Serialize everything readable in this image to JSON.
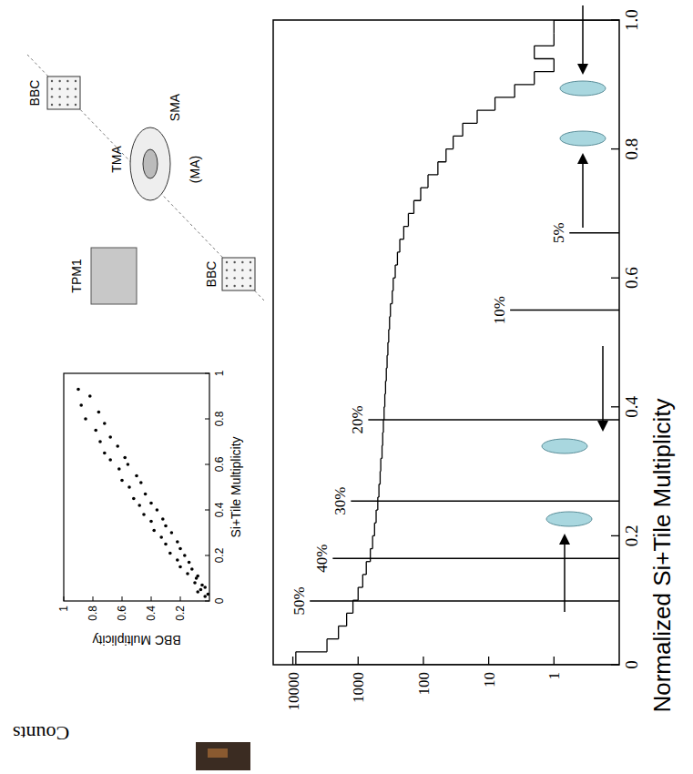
{
  "chart_data": [
    {
      "type": "histogram",
      "x_label": "Normalized Si+Tile Multiplicity",
      "y_label": "Counts",
      "bins": [
        0,
        0.02,
        0.04,
        0.06,
        0.08,
        0.1,
        0.12,
        0.14,
        0.16,
        0.18,
        0.2,
        0.22,
        0.24,
        0.26,
        0.28,
        0.3,
        0.32,
        0.34,
        0.36,
        0.38,
        0.4,
        0.42,
        0.44,
        0.46,
        0.48,
        0.5,
        0.52,
        0.54,
        0.56,
        0.58,
        0.6,
        0.62,
        0.64,
        0.66,
        0.68,
        0.7,
        0.72,
        0.74,
        0.76,
        0.78,
        0.8,
        0.82,
        0.84,
        0.86,
        0.88,
        0.9,
        0.92,
        0.94,
        0.96,
        0.98,
        1
      ],
      "values": [
        9000,
        3000,
        2000,
        1500,
        1200,
        1000,
        850,
        750,
        650,
        600,
        560,
        530,
        500,
        480,
        460,
        450,
        430,
        420,
        410,
        400,
        390,
        380,
        370,
        360,
        350,
        340,
        330,
        320,
        300,
        290,
        270,
        250,
        230,
        200,
        170,
        140,
        110,
        85,
        60,
        45,
        35,
        25,
        15,
        8,
        4,
        2,
        1,
        2,
        1,
        1
      ],
      "color": "#000000",
      "log": "y",
      "xlim": [
        0,
        1
      ],
      "ylim": [
        0.1,
        20000
      ],
      "xticks": [
        0,
        0.2,
        0.4,
        0.6,
        0.8,
        {
          "value": 1,
          "label": "1.0"
        }
      ],
      "yticks": [
        1,
        10,
        100,
        1000,
        10000
      ],
      "annotations": [
        {
          "label": "50%",
          "x": 0.099,
          "y": 5500
        },
        {
          "label": "40%",
          "x": 0.165,
          "y": 2450
        },
        {
          "label": "30%",
          "x": 0.254,
          "y": 1290
        },
        {
          "label": "20%",
          "x": 0.38,
          "y": 700
        },
        {
          "label": "10%",
          "x": 0.55,
          "y": 4.7
        },
        {
          "label": "5%",
          "x": 0.67,
          "y": 0.58
        }
      ]
    },
    {
      "type": "scatter",
      "x_label": "Si+Tile Multiplicity",
      "y_label": "BBC Multiplicity",
      "x": [
        0.02,
        0.03,
        0.05,
        0.04,
        0.06,
        0.08,
        0.07,
        0.1,
        0.12,
        0.11,
        0.14,
        0.15,
        0.17,
        0.18,
        0.2,
        0.21,
        0.23,
        0.25,
        0.26,
        0.28,
        0.3,
        0.31,
        0.33,
        0.35,
        0.36,
        0.38,
        0.4,
        0.42,
        0.43,
        0.45,
        0.47,
        0.5,
        0.52,
        0.53,
        0.55,
        0.58,
        0.6,
        0.62,
        0.63,
        0.65,
        0.68,
        0.7,
        0.72,
        0.75,
        0.78,
        0.8,
        0.83,
        0.86,
        0.9,
        0.93
      ],
      "values": [
        0.03,
        0.01,
        0.06,
        0.08,
        0.03,
        0.1,
        0.05,
        0.09,
        0.15,
        0.08,
        0.12,
        0.2,
        0.14,
        0.22,
        0.17,
        0.27,
        0.2,
        0.3,
        0.22,
        0.33,
        0.26,
        0.38,
        0.3,
        0.4,
        0.32,
        0.45,
        0.36,
        0.48,
        0.4,
        0.52,
        0.44,
        0.55,
        0.47,
        0.6,
        0.5,
        0.62,
        0.56,
        0.68,
        0.58,
        0.72,
        0.63,
        0.75,
        0.68,
        0.78,
        0.72,
        0.85,
        0.76,
        0.88,
        0.82,
        0.9
      ],
      "color": "#000000",
      "marker": "dot",
      "xlim": [
        0,
        1
      ],
      "ylim": [
        0,
        1
      ],
      "xticks": [
        0,
        0.2,
        0.4,
        0.6,
        0.8,
        1
      ],
      "yticks": [
        0.2,
        0.4,
        0.6,
        0.8,
        1
      ]
    }
  ],
  "diagram": {
    "labels": [
      "BBC",
      "TMA",
      "SMA",
      "(MA)",
      "BBC",
      "TPM1"
    ]
  }
}
